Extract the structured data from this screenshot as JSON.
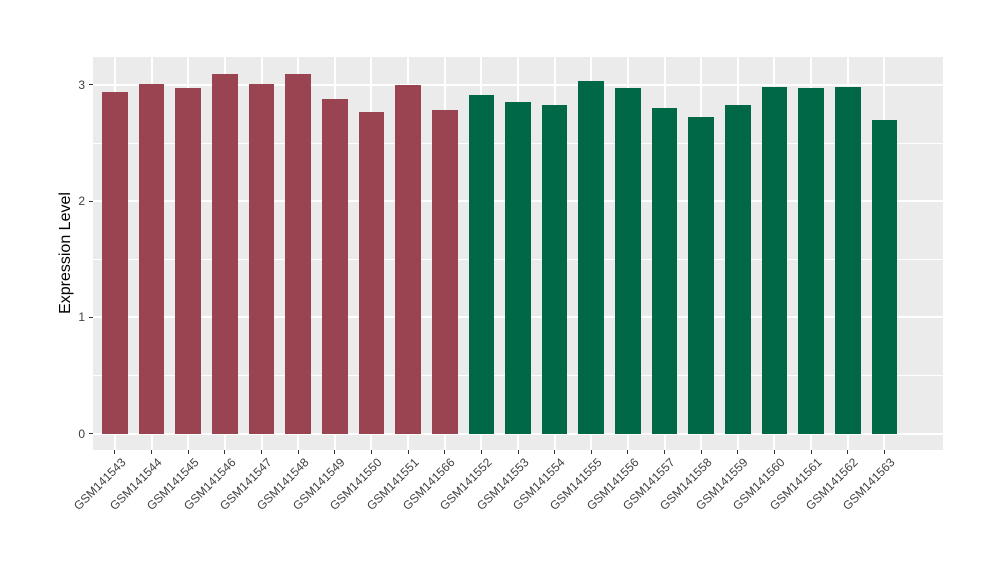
{
  "figure": {
    "background": "#ffffff",
    "panel_background": "#EBEBEB",
    "grid_color": "#ffffff",
    "axis_text_color": "#404040",
    "tick_mark_color": "#333333"
  },
  "chart_data": {
    "type": "bar",
    "title": "",
    "xlabel": "",
    "ylabel": "Expression Level",
    "ylim": [
      -0.14,
      3.24
    ],
    "yticks": [
      0,
      1,
      2,
      3
    ],
    "ytick_labels": [
      "0",
      "1",
      "2",
      "3"
    ],
    "minor_yticks": [
      0.5,
      1.5,
      2.5
    ],
    "grid": true,
    "legend_position": "none",
    "group_colors": {
      "group1": "#9A4452",
      "group2": "#006847"
    },
    "categories": [
      "GSM141543",
      "GSM141544",
      "GSM141545",
      "GSM141546",
      "GSM141547",
      "GSM141548",
      "GSM141549",
      "GSM141550",
      "GSM141551",
      "GSM141566",
      "GSM141552",
      "GSM141553",
      "GSM141554",
      "GSM141555",
      "GSM141556",
      "GSM141557",
      "GSM141558",
      "GSM141559",
      "GSM141560",
      "GSM141561",
      "GSM141562",
      "GSM141563"
    ],
    "values": [
      2.94,
      3.01,
      2.97,
      3.09,
      3.01,
      3.09,
      2.88,
      2.77,
      3.0,
      2.78,
      2.91,
      2.85,
      2.83,
      3.03,
      2.97,
      2.8,
      2.72,
      2.83,
      2.98,
      2.97,
      2.98,
      2.7
    ],
    "colors": [
      "#9A4452",
      "#9A4452",
      "#9A4452",
      "#9A4452",
      "#9A4452",
      "#9A4452",
      "#9A4452",
      "#9A4452",
      "#9A4452",
      "#9A4452",
      "#006847",
      "#006847",
      "#006847",
      "#006847",
      "#006847",
      "#006847",
      "#006847",
      "#006847",
      "#006847",
      "#006847",
      "#006847",
      "#006847"
    ]
  }
}
